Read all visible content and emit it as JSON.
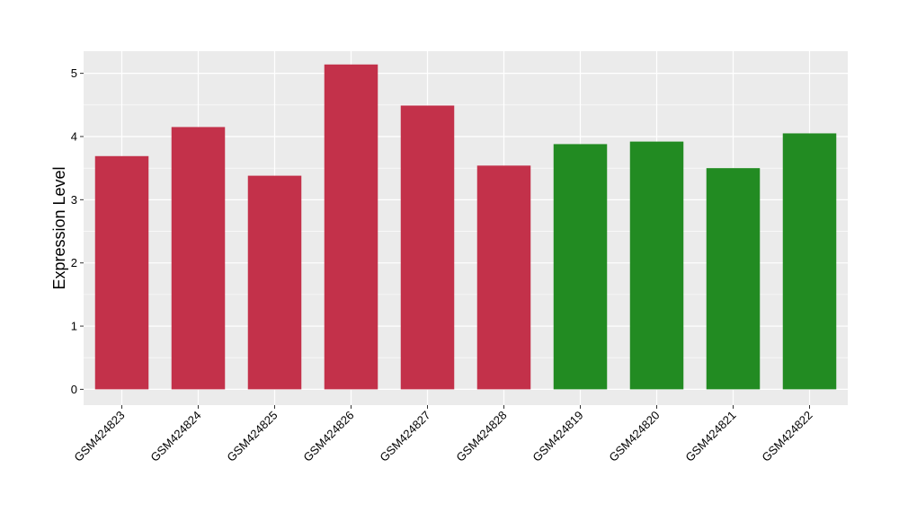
{
  "chart_data": {
    "type": "bar",
    "title": "",
    "xlabel": "",
    "ylabel": "Expression Level",
    "categories": [
      "GSM424823",
      "GSM424824",
      "GSM424825",
      "GSM424826",
      "GSM424827",
      "GSM424828",
      "GSM424819",
      "GSM424820",
      "GSM424821",
      "GSM424822"
    ],
    "values": [
      3.69,
      4.15,
      3.38,
      5.14,
      4.49,
      3.54,
      3.88,
      3.92,
      3.5,
      4.05
    ],
    "bar_colors": [
      "#c3314a",
      "#c3314a",
      "#c3314a",
      "#c3314a",
      "#c3314a",
      "#c3314a",
      "#228b22",
      "#228b22",
      "#228b22",
      "#228b22"
    ],
    "ylim": [
      -0.25,
      5.35
    ],
    "y_ticks": [
      "0",
      "1",
      "2",
      "3",
      "4",
      "5"
    ],
    "grid": true,
    "panel_background": "#ebebeb",
    "grid_color": "#ffffff"
  }
}
